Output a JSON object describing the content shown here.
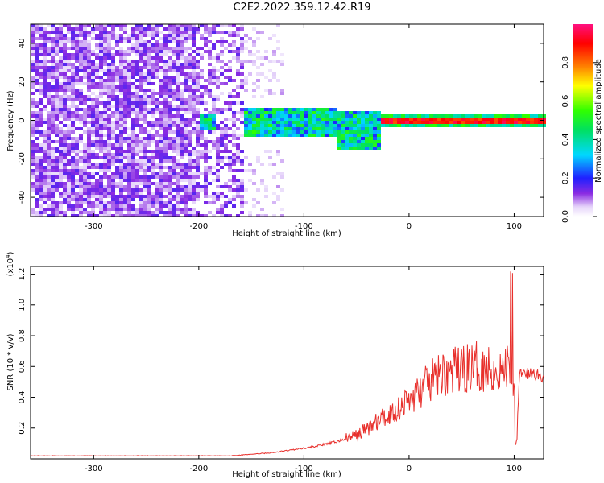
{
  "title": "C2E2.2022.359.12.42.R19",
  "chart_data": [
    {
      "type": "heatmap",
      "xlabel": "Height of straight line (km)",
      "ylabel": "Frequency (Hz)",
      "xlim": [
        -360,
        128
      ],
      "ylim": [
        -50,
        50
      ],
      "xticks": [
        -300,
        -200,
        -100,
        0,
        100
      ],
      "yticks": [
        -40,
        -20,
        0,
        20,
        40
      ],
      "colorbar": {
        "label": "Normalized spectral amplitude",
        "range": [
          0.0,
          1.0
        ],
        "ticks": [
          "0.0",
          "0.2",
          "0.4",
          "0.6",
          "0.8"
        ]
      },
      "description_regions": [
        {
          "x_range": [
            -360,
            -160
          ],
          "freq_range": [
            -50,
            50
          ],
          "amplitude": [
            0.0,
            0.15
          ]
        },
        {
          "x_range": [
            -160,
            -30
          ],
          "freq_range": [
            -12,
            8
          ],
          "amplitude": [
            0.1,
            0.5
          ]
        },
        {
          "x_range": [
            -30,
            128
          ],
          "freq_range": [
            -3,
            3
          ],
          "amplitude": [
            0.6,
            1.0
          ]
        }
      ]
    },
    {
      "type": "line",
      "xlabel": "Height of straight line (km)",
      "ylabel": "SNR (10 * v/v)",
      "y_multiplier": "(x10",
      "y_multiplier_exp": "4",
      "xlim": [
        -360,
        128
      ],
      "ylim": [
        0.0,
        1.25
      ],
      "xticks": [
        -300,
        -200,
        -100,
        0,
        100
      ],
      "yticks": [
        0.2,
        0.4,
        0.6,
        0.8,
        1.0,
        1.2
      ],
      "color": "#e8302c",
      "x": [
        -360,
        -300,
        -250,
        -200,
        -170,
        -150,
        -130,
        -110,
        -90,
        -70,
        -50,
        -40,
        -30,
        -20,
        -10,
        0,
        10,
        20,
        30,
        40,
        50,
        60,
        70,
        80,
        90,
        95,
        100,
        102,
        105,
        110,
        120,
        128
      ],
      "values": [
        0.02,
        0.02,
        0.02,
        0.02,
        0.02,
        0.03,
        0.04,
        0.06,
        0.08,
        0.11,
        0.15,
        0.2,
        0.24,
        0.28,
        0.33,
        0.38,
        0.44,
        0.5,
        0.55,
        0.57,
        0.58,
        0.6,
        0.6,
        0.58,
        0.57,
        0.62,
        0.55,
        0.1,
        0.55,
        0.55,
        0.55,
        0.53
      ]
    }
  ]
}
